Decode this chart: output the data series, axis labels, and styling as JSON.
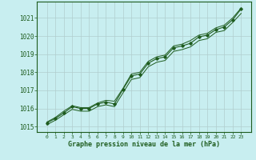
{
  "x": [
    0,
    1,
    2,
    3,
    4,
    5,
    6,
    7,
    8,
    9,
    10,
    11,
    12,
    13,
    14,
    15,
    16,
    17,
    18,
    19,
    20,
    21,
    22,
    23
  ],
  "y_main": [
    1015.2,
    1015.45,
    1015.75,
    1016.1,
    1016.0,
    1016.0,
    1016.25,
    1016.35,
    1016.25,
    1017.05,
    1017.8,
    1017.9,
    1018.5,
    1018.75,
    1018.85,
    1019.35,
    1019.45,
    1019.6,
    1019.95,
    1020.05,
    1020.35,
    1020.5,
    1020.9,
    1021.5
  ],
  "y_upper": [
    1015.25,
    1015.5,
    1015.85,
    1016.15,
    1016.05,
    1016.05,
    1016.3,
    1016.45,
    1016.4,
    1017.1,
    1017.9,
    1018.0,
    1018.6,
    1018.85,
    1018.95,
    1019.45,
    1019.55,
    1019.75,
    1020.05,
    1020.15,
    1020.45,
    1020.6,
    1021.0,
    1021.55
  ],
  "y_lower": [
    1015.1,
    1015.35,
    1015.65,
    1015.95,
    1015.85,
    1015.85,
    1016.1,
    1016.2,
    1016.1,
    1016.85,
    1017.6,
    1017.7,
    1018.3,
    1018.55,
    1018.65,
    1019.15,
    1019.25,
    1019.4,
    1019.75,
    1019.85,
    1020.2,
    1020.3,
    1020.75,
    1021.25
  ],
  "bg_color": "#c8eef0",
  "line_color": "#1e5c1e",
  "grid_color": "#b0cece",
  "text_color": "#1e5c1e",
  "xlabel": "Graphe pression niveau de la mer (hPa)",
  "ylim": [
    1014.7,
    1021.9
  ],
  "yticks": [
    1015,
    1016,
    1017,
    1018,
    1019,
    1020,
    1021
  ],
  "xticks": [
    0,
    1,
    2,
    3,
    4,
    5,
    6,
    7,
    8,
    9,
    10,
    11,
    12,
    13,
    14,
    15,
    16,
    17,
    18,
    19,
    20,
    21,
    22,
    23
  ]
}
